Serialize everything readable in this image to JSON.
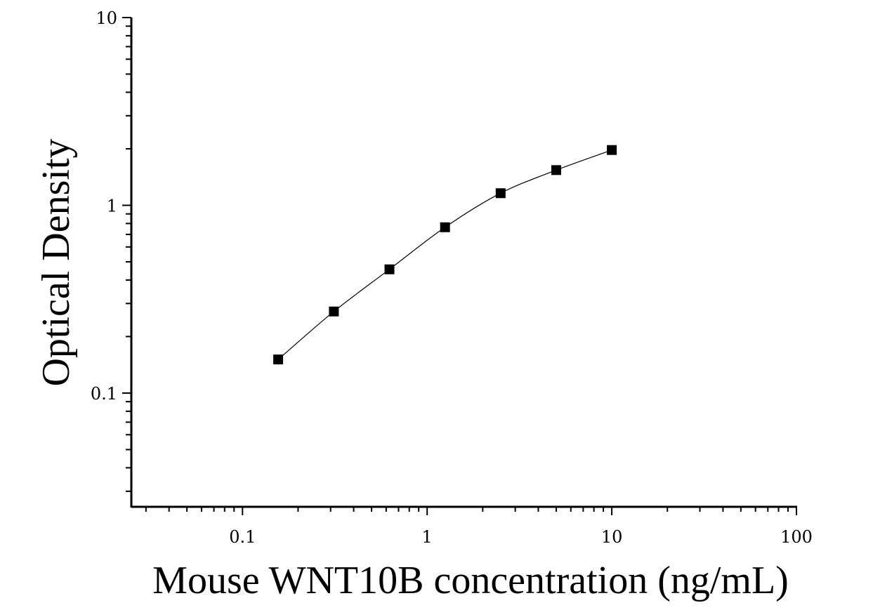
{
  "chart_data": {
    "type": "scatter",
    "title": "",
    "xlabel": "Mouse WNT10B concentration (ng/mL)",
    "ylabel": "Optical Density",
    "xscale": "log",
    "yscale": "log",
    "xlim": [
      0.025,
      100
    ],
    "ylim": [
      0.025,
      10
    ],
    "x_ticks": [
      0.1,
      1,
      10,
      100
    ],
    "x_tick_labels": [
      "0.1",
      "1",
      "10",
      "100"
    ],
    "y_ticks": [
      0.1,
      1,
      10
    ],
    "y_tick_labels": [
      "0.1",
      "1",
      "10"
    ],
    "grid": false,
    "marker": "square",
    "color": "#000000",
    "series": [
      {
        "x": [
          0.156,
          0.3125,
          0.625,
          1.25,
          2.5,
          5,
          10
        ],
        "y": [
          0.151,
          0.272,
          0.456,
          0.764,
          1.16,
          1.54,
          1.97
        ]
      }
    ],
    "fit_curve": true
  }
}
